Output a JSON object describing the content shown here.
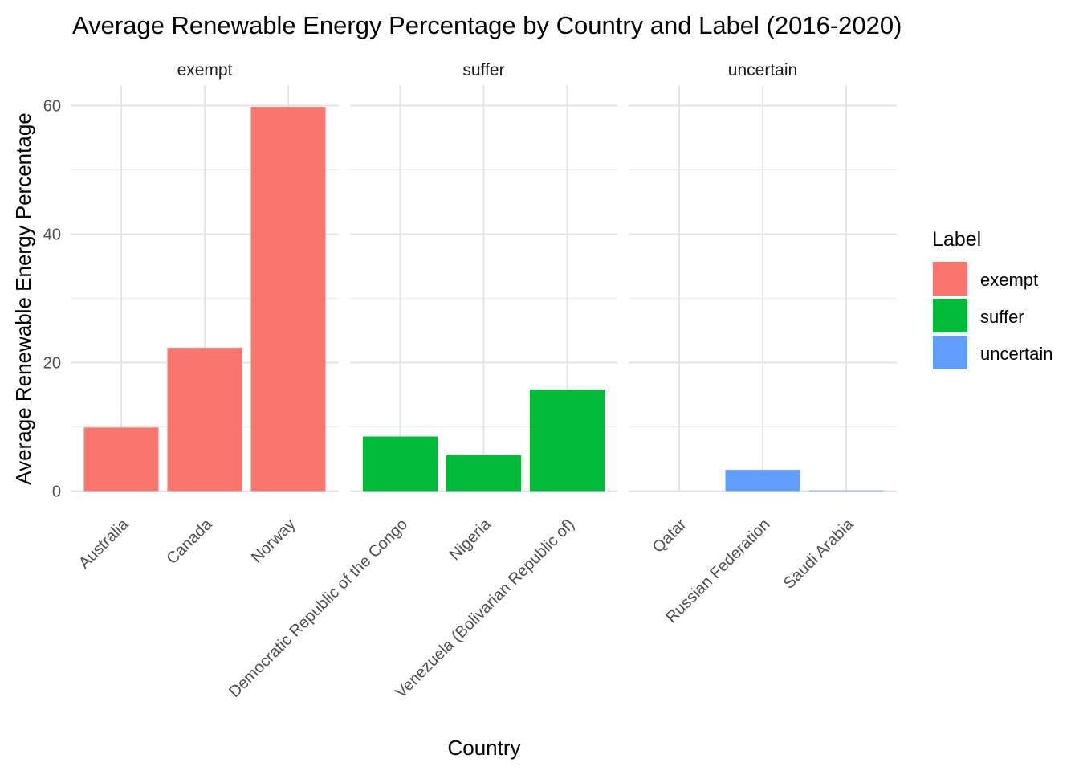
{
  "chart_data": {
    "type": "bar",
    "title": "Average Renewable Energy Percentage by Country and Label (2016-2020)",
    "xlabel": "Country",
    "ylabel": "Average Renewable Energy Percentage",
    "ylim": [
      0,
      63
    ],
    "yticks": [
      0,
      20,
      40,
      60
    ],
    "grid": true,
    "legend": {
      "title": "Label",
      "placement": "right",
      "entries": [
        {
          "label": "exempt",
          "color": "#F8766D"
        },
        {
          "label": "suffer",
          "color": "#00BA38"
        },
        {
          "label": "uncertain",
          "color": "#619CFF"
        }
      ]
    },
    "facets": [
      {
        "label": "exempt",
        "color": "#F8766D",
        "categories": [
          "Australia",
          "Canada",
          "Norway"
        ],
        "values": [
          9.9,
          22.3,
          59.8
        ]
      },
      {
        "label": "suffer",
        "color": "#00BA38",
        "categories": [
          "Democratic Republic of the Congo",
          "Nigeria",
          "Venezuela (Bolivarian Republic of)"
        ],
        "values": [
          8.5,
          5.6,
          15.8
        ]
      },
      {
        "label": "uncertain",
        "color": "#619CFF",
        "categories": [
          "Qatar",
          "Russian Federation",
          "Saudi Arabia"
        ],
        "values": [
          0.0,
          3.3,
          0.1
        ]
      }
    ]
  }
}
